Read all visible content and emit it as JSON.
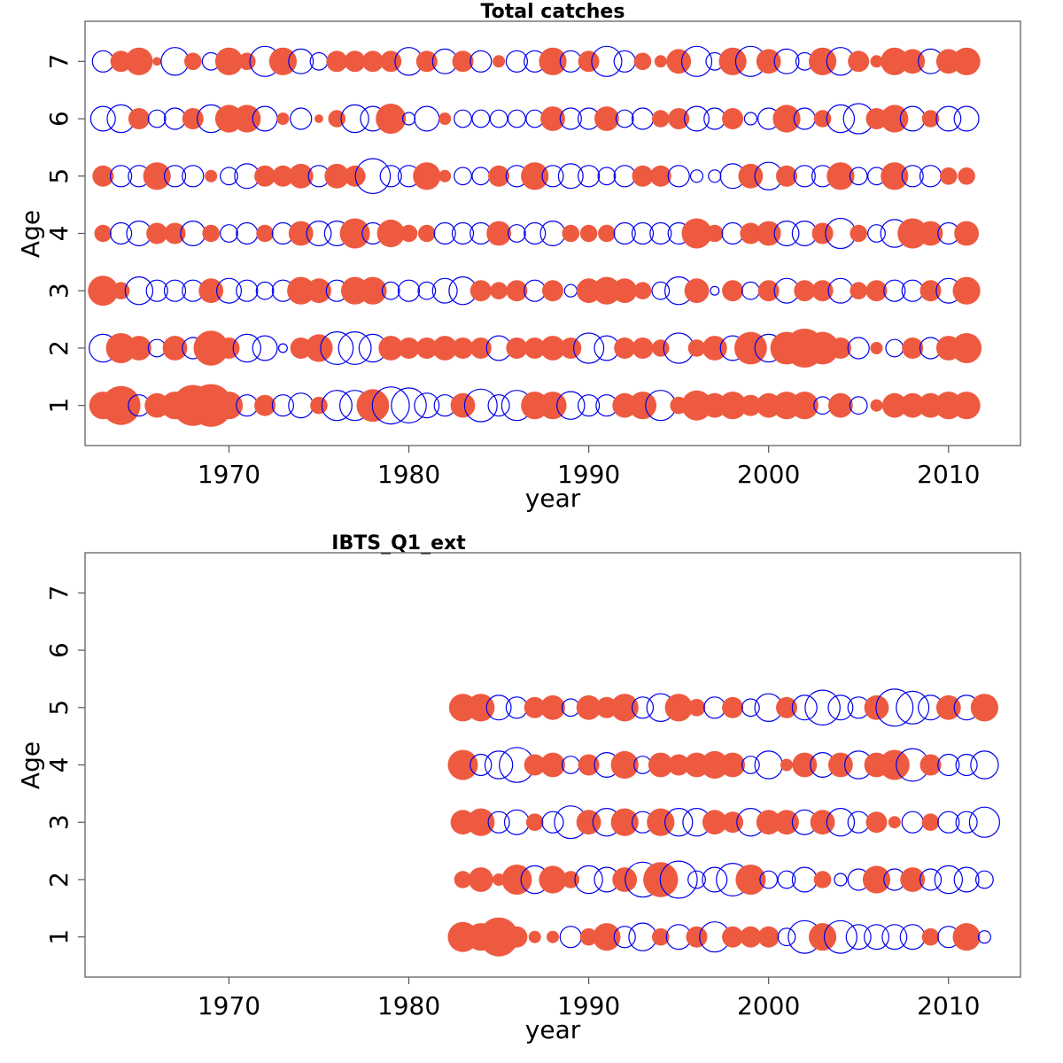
{
  "colors": {
    "positive": "#ee5a40",
    "negative": "#0000ee",
    "frame": "#555555"
  },
  "chart_data": [
    {
      "type": "scatter",
      "subtype": "bubble-residuals",
      "title": "Total catches",
      "xlabel": "year",
      "ylabel": "Age",
      "xlim": [
        1962,
        2014
      ],
      "ylim": [
        0.3,
        7.7
      ],
      "xticks": [
        1970,
        1980,
        1990,
        2000,
        2010
      ],
      "yticks": [
        1,
        2,
        3,
        4,
        5,
        6,
        7
      ],
      "legend": "none",
      "years": [
        1963,
        1964,
        1965,
        1966,
        1967,
        1968,
        1969,
        1970,
        1971,
        1972,
        1973,
        1974,
        1975,
        1976,
        1977,
        1978,
        1979,
        1980,
        1981,
        1982,
        1983,
        1984,
        1985,
        1986,
        1987,
        1988,
        1989,
        1990,
        1991,
        1992,
        1993,
        1994,
        1995,
        1996,
        1997,
        1998,
        1999,
        2000,
        2001,
        2002,
        2003,
        2004,
        2005,
        2006,
        2007,
        2008,
        2009,
        2010,
        2011
      ],
      "ages": [
        {
          "age": 1,
          "values": [
            0.5,
            1.0,
            -0.3,
            0.4,
            0.5,
            1.1,
            1.2,
            0.5,
            -0.3,
            0.3,
            -0.3,
            -0.4,
            0.2,
            -0.6,
            -0.6,
            0.7,
            -0.9,
            -0.8,
            -0.4,
            -0.3,
            0.4,
            -0.7,
            -0.3,
            -0.6,
            0.5,
            0.5,
            -0.5,
            -0.3,
            -0.3,
            0.4,
            0.5,
            -0.6,
            0.2,
            0.6,
            0.4,
            0.5,
            0.3,
            0.4,
            0.5,
            0.5,
            -0.2,
            0.4,
            -0.2,
            0.1,
            0.4,
            0.4,
            0.4,
            0.5,
            0.5
          ]
        },
        {
          "age": 2,
          "values": [
            -0.5,
            0.6,
            0.4,
            -0.2,
            0.4,
            -0.3,
            0.8,
            0.3,
            -0.5,
            -0.4,
            -0.05,
            0.3,
            0.5,
            -0.7,
            -0.7,
            -0.5,
            0.4,
            0.3,
            0.3,
            0.4,
            0.3,
            0.3,
            -0.4,
            0.3,
            0.3,
            0.4,
            0.3,
            -0.6,
            -0.4,
            0.3,
            0.3,
            0.2,
            -0.6,
            0.2,
            0.4,
            -0.4,
            0.7,
            -0.5,
            0.7,
            1.0,
            0.7,
            0.3,
            -0.3,
            0.1,
            -0.2,
            0.3,
            -0.3,
            0.4,
            0.6
          ]
        },
        {
          "age": 3,
          "values": [
            0.6,
            0.2,
            -0.5,
            -0.3,
            -0.3,
            -0.3,
            0.4,
            -0.4,
            -0.3,
            -0.2,
            -0.3,
            0.5,
            0.4,
            -0.3,
            0.5,
            0.5,
            -0.2,
            -0.3,
            -0.2,
            -0.4,
            -0.5,
            0.3,
            0.2,
            0.3,
            -0.3,
            0.3,
            -0.1,
            0.4,
            0.5,
            0.4,
            0.2,
            -0.2,
            -0.5,
            0.4,
            -0.05,
            0.3,
            -0.2,
            0.3,
            -0.4,
            0.3,
            0.3,
            -0.4,
            0.2,
            0.3,
            -0.3,
            -0.3,
            0.3,
            -0.4,
            0.5
          ]
        },
        {
          "age": 4,
          "values": [
            0.2,
            -0.3,
            -0.4,
            0.3,
            0.3,
            -0.4,
            0.2,
            -0.2,
            -0.3,
            0.2,
            -0.3,
            0.4,
            -0.4,
            -0.4,
            0.6,
            -0.3,
            0.5,
            0.2,
            0.2,
            -0.3,
            -0.3,
            -0.3,
            0.4,
            -0.2,
            -0.3,
            -0.4,
            0.2,
            0.2,
            0.2,
            -0.3,
            -0.3,
            -0.3,
            -0.3,
            0.6,
            0.2,
            -0.3,
            0.3,
            0.4,
            -0.4,
            -0.4,
            0.3,
            -0.6,
            0.2,
            -0.2,
            -0.5,
            0.6,
            0.4,
            -0.3,
            0.4
          ]
        },
        {
          "age": 5,
          "values": [
            0.3,
            -0.3,
            -0.3,
            0.5,
            -0.3,
            -0.3,
            0.1,
            -0.2,
            -0.4,
            0.3,
            0.3,
            0.4,
            -0.3,
            0.4,
            0.3,
            -0.8,
            -0.3,
            -0.3,
            0.5,
            0.1,
            -0.2,
            -0.2,
            0.3,
            -0.3,
            0.5,
            -0.3,
            -0.4,
            -0.3,
            -0.2,
            -0.3,
            0.3,
            0.3,
            -0.3,
            -0.1,
            -0.1,
            -0.4,
            0.4,
            -0.5,
            0.3,
            -0.3,
            -0.3,
            0.5,
            -0.2,
            -0.2,
            0.5,
            -0.3,
            -0.3,
            0.2,
            0.2
          ]
        },
        {
          "age": 6,
          "values": [
            -0.4,
            -0.5,
            0.3,
            -0.2,
            -0.3,
            0.3,
            -0.5,
            0.5,
            0.5,
            -0.4,
            0.1,
            -0.3,
            0.05,
            0.2,
            -0.5,
            -0.4,
            0.6,
            -0.1,
            -0.4,
            0.1,
            -0.2,
            -0.2,
            -0.2,
            -0.2,
            -0.2,
            0.4,
            -0.3,
            -0.3,
            0.4,
            -0.2,
            -0.3,
            0.2,
            0.3,
            -0.4,
            -0.3,
            0.3,
            -0.1,
            -0.3,
            0.5,
            -0.3,
            0.2,
            -0.5,
            -0.6,
            0.3,
            0.5,
            -0.4,
            0.2,
            -0.4,
            -0.4
          ]
        },
        {
          "age": 7,
          "values": [
            -0.3,
            0.3,
            0.5,
            0.05,
            -0.5,
            0.2,
            -0.2,
            0.5,
            0.2,
            -0.6,
            0.5,
            -0.4,
            -0.2,
            0.3,
            0.3,
            0.3,
            0.3,
            -0.5,
            0.3,
            -0.4,
            0.3,
            -0.3,
            0.1,
            -0.3,
            -0.3,
            0.5,
            -0.3,
            0.3,
            -0.6,
            -0.3,
            0.2,
            0.1,
            0.4,
            -0.6,
            -0.2,
            0.5,
            -0.6,
            0.4,
            -0.4,
            -0.2,
            0.5,
            -0.5,
            0.3,
            0.1,
            0.5,
            0.4,
            -0.4,
            0.4,
            0.5
          ]
        }
      ]
    },
    {
      "type": "scatter",
      "subtype": "bubble-residuals",
      "title": "IBTS_Q1_ext",
      "xlabel": "year",
      "ylabel": "Age",
      "xlim": [
        1962,
        2014
      ],
      "ylim": [
        0.3,
        7.7
      ],
      "xticks": [
        1970,
        1980,
        1990,
        2000,
        2010
      ],
      "yticks": [
        1,
        2,
        3,
        4,
        5,
        6,
        7
      ],
      "legend": "none",
      "years": [
        1983,
        1984,
        1985,
        1986,
        1987,
        1988,
        1989,
        1990,
        1991,
        1992,
        1993,
        1994,
        1995,
        1996,
        1997,
        1998,
        1999,
        2000,
        2001,
        2002,
        2003,
        2004,
        2005,
        2006,
        2007,
        2008,
        2009,
        2010,
        2011,
        2012
      ],
      "ages": [
        {
          "age": 1,
          "values": [
            0.6,
            0.5,
            1.0,
            0.3,
            0.1,
            0.1,
            -0.3,
            0.2,
            0.5,
            -0.3,
            -0.5,
            0.2,
            -0.4,
            0.3,
            -0.6,
            0.3,
            0.3,
            0.3,
            -0.2,
            -0.7,
            0.5,
            -0.7,
            -0.4,
            -0.4,
            -0.4,
            -0.4,
            0.2,
            -0.3,
            0.5,
            -0.1
          ]
        },
        {
          "age": 2,
          "values": [
            0.2,
            0.4,
            0.1,
            0.6,
            -0.5,
            0.5,
            0.2,
            -0.5,
            -0.4,
            0.4,
            -0.8,
            0.8,
            -0.9,
            -0.2,
            -0.4,
            -0.7,
            0.6,
            -0.2,
            -0.2,
            -0.4,
            0.2,
            -0.1,
            -0.3,
            0.5,
            -0.3,
            0.4,
            -0.3,
            -0.5,
            -0.4,
            -0.2
          ]
        },
        {
          "age": 3,
          "values": [
            0.4,
            0.5,
            -0.3,
            -0.4,
            0.2,
            -0.3,
            -0.7,
            0.4,
            -0.5,
            0.5,
            -0.3,
            0.5,
            -0.5,
            -0.5,
            0.4,
            0.3,
            -0.5,
            0.4,
            0.4,
            -0.4,
            0.4,
            -0.5,
            -0.3,
            0.3,
            0.1,
            -0.3,
            0.2,
            -0.3,
            -0.3,
            -0.6
          ]
        },
        {
          "age": 4,
          "values": [
            0.6,
            -0.3,
            -0.5,
            -0.8,
            0.3,
            0.4,
            -0.2,
            0.3,
            -0.4,
            0.5,
            -0.2,
            0.4,
            0.3,
            0.4,
            0.5,
            0.4,
            -0.2,
            -0.5,
            0.1,
            0.4,
            -0.4,
            0.4,
            -0.5,
            0.4,
            0.6,
            -0.7,
            0.3,
            -0.3,
            -0.3,
            -0.5
          ]
        },
        {
          "age": 5,
          "values": [
            0.5,
            0.5,
            -0.4,
            -0.3,
            0.3,
            0.4,
            -0.2,
            0.4,
            0.3,
            0.5,
            -0.3,
            -0.5,
            0.5,
            0.2,
            -0.3,
            0.3,
            -0.2,
            -0.5,
            0.3,
            -0.4,
            -0.8,
            -0.4,
            -0.3,
            0.4,
            -0.9,
            -0.7,
            -0.4,
            0.4,
            -0.4,
            0.5
          ]
        }
      ]
    }
  ]
}
